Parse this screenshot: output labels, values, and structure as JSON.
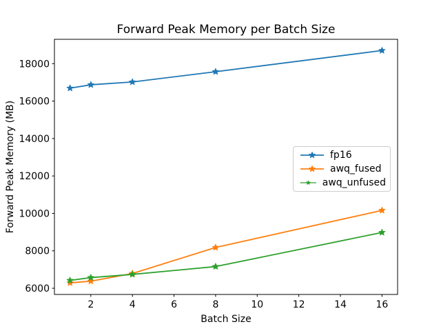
{
  "chart_data": {
    "type": "line",
    "title": "Forward Peak Memory per Batch Size",
    "xlabel": "Batch Size",
    "ylabel": "Forward Peak Memory (MB)",
    "x": [
      1,
      2,
      4,
      8,
      16
    ],
    "series": [
      {
        "name": "fp16",
        "color": "#1f77b4",
        "marker": "star",
        "values": [
          16690,
          16870,
          17020,
          17570,
          18700
        ]
      },
      {
        "name": "awq_fused",
        "color": "#ff7f0e",
        "marker": "star",
        "values": [
          6290,
          6380,
          6790,
          8180,
          10160
        ]
      },
      {
        "name": "awq_unfused",
        "color": "#2ca02c",
        "marker": "star",
        "values": [
          6420,
          6570,
          6740,
          7160,
          8980
        ]
      }
    ],
    "xlim": [
      0.25,
      16.75
    ],
    "ylim": [
      5670,
      19300
    ],
    "xticks": [
      2,
      4,
      6,
      8,
      10,
      12,
      14,
      16
    ],
    "yticks": [
      6000,
      8000,
      10000,
      12000,
      14000,
      16000,
      18000
    ],
    "grid": false,
    "legend_position": "center right",
    "spine_color": "#000000",
    "tick_color": "#000000",
    "legend_border_color": "#cccccc",
    "background_color": "#ffffff"
  }
}
